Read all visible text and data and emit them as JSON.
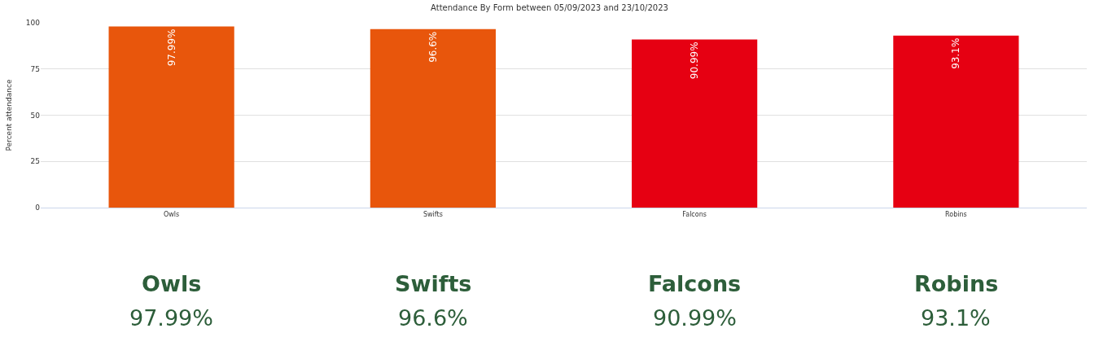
{
  "chart_data": {
    "type": "bar",
    "title": "Attendance By Form between 05/09/2023 and 23/10/2023",
    "ylabel": "Percent attendance",
    "categories": [
      "Owls",
      "Swifts",
      "Falcons",
      "Robins"
    ],
    "values": [
      97.99,
      96.6,
      90.99,
      93.1
    ],
    "colors": [
      "#e8560c",
      "#e8560c",
      "#e60012",
      "#e60012"
    ],
    "value_labels": [
      "97.99%",
      "96.6%",
      "90.99%",
      "93.1%"
    ],
    "data_labels": true,
    "ylim": [
      0,
      100
    ],
    "yticks": [
      0,
      25,
      50,
      75,
      100
    ],
    "grid": "y"
  }
}
